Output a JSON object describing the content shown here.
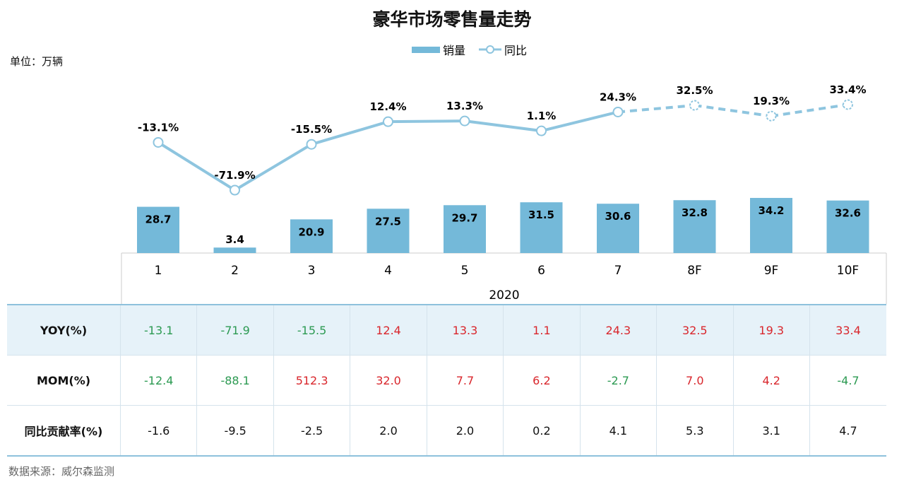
{
  "chart_data": {
    "type": "bar+line",
    "title": "豪华市场零售量走势",
    "unit_label": "单位：万辆",
    "legend": [
      "销量",
      "同比"
    ],
    "legend_position": "top-center",
    "categories": [
      "1",
      "2",
      "3",
      "4",
      "5",
      "6",
      "7",
      "8F",
      "9F",
      "10F"
    ],
    "year_label": "2020",
    "series": [
      {
        "name": "销量",
        "type": "bar",
        "values": [
          28.7,
          3.4,
          20.9,
          27.5,
          29.7,
          31.5,
          30.6,
          32.8,
          34.2,
          32.6
        ]
      },
      {
        "name": "同比",
        "type": "line",
        "values": [
          -13.1,
          -71.9,
          -15.5,
          12.4,
          13.3,
          1.1,
          24.3,
          32.5,
          19.3,
          33.4
        ],
        "labels": [
          "-13.1%",
          "-71.9%",
          "-15.5%",
          "12.4%",
          "13.3%",
          "1.1%",
          "24.3%",
          "32.5%",
          "19.3%",
          "33.4%"
        ],
        "forecast_from_index": 6
      }
    ],
    "colors": {
      "bar": "#74b9d9",
      "line": "#8ec5df",
      "positive": "#d9262c",
      "negative": "#2c9a52",
      "row_highlight": "#e6f2f9"
    }
  },
  "table": {
    "rows": [
      {
        "label": "YOY(%)",
        "values": [
          "-13.1",
          "-71.9",
          "-15.5",
          "12.4",
          "13.3",
          "1.1",
          "24.3",
          "32.5",
          "19.3",
          "33.4"
        ],
        "colored": true
      },
      {
        "label": "MOM(%)",
        "values": [
          "-12.4",
          "-88.1",
          "512.3",
          "32.0",
          "7.7",
          "6.2",
          "-2.7",
          "7.0",
          "4.2",
          "-4.7"
        ],
        "colored": true
      },
      {
        "label": "同比贡献率(%)",
        "values": [
          "-1.6",
          "-9.5",
          "-2.5",
          "2.0",
          "2.0",
          "0.2",
          "4.1",
          "5.3",
          "3.1",
          "4.7"
        ],
        "colored": false
      }
    ]
  },
  "source": "数据来源：威尔森监测"
}
